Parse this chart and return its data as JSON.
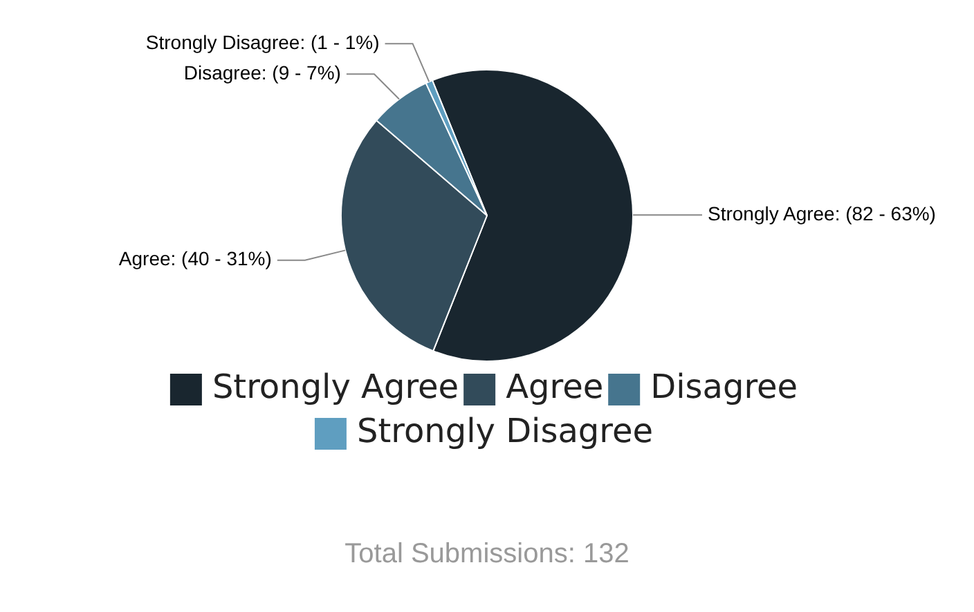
{
  "chart_data": {
    "type": "pie",
    "categories": [
      "Strongly Agree",
      "Agree",
      "Disagree",
      "Strongly Disagree"
    ],
    "values": [
      82,
      40,
      9,
      1
    ],
    "colors": [
      "#19262f",
      "#324b5a",
      "#46758e",
      "#5f9ec0"
    ],
    "value_labels": [
      "Strongly Agree: (82 - 63%)",
      "Agree: (40 - 31%)",
      "Disagree: (9 - 7%)",
      "Strongly Disagree: (1 - 1%)"
    ],
    "legend": "bottom",
    "annotations": [
      "Total Submissions: 132"
    ]
  }
}
